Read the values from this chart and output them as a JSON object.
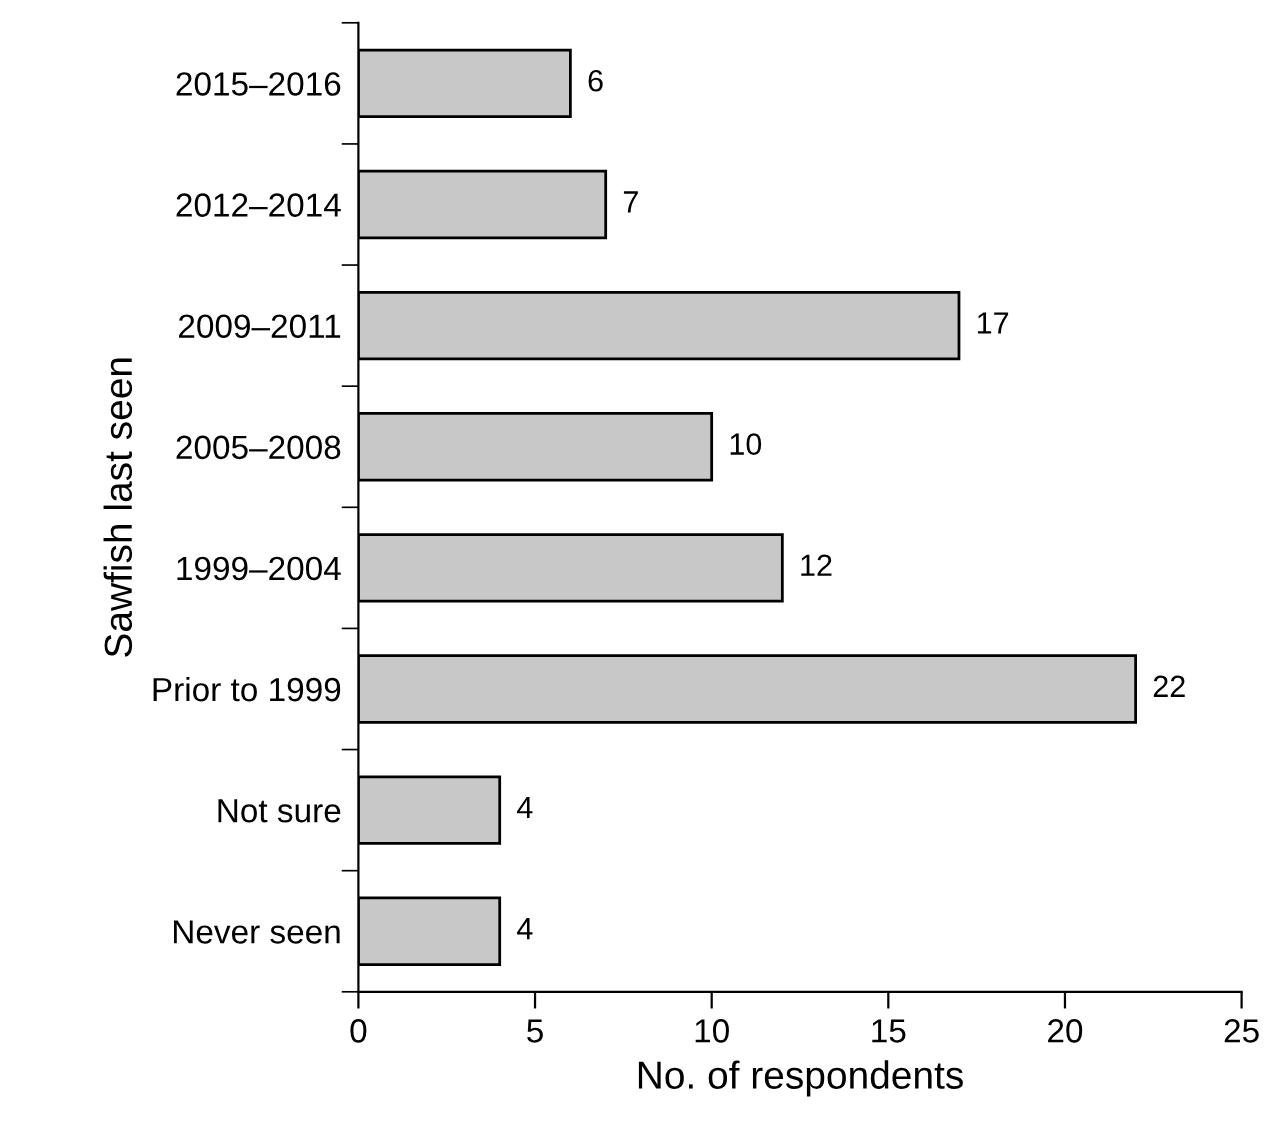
{
  "chart_data": {
    "type": "bar",
    "orientation": "horizontal",
    "xlabel": "No. of respondents",
    "ylabel": "Sawfish last seen",
    "categories": [
      "2015–2016",
      "2012–2014",
      "2009–2011",
      "2005–2008",
      "1999–2004",
      "Prior to 1999",
      "Not sure",
      "Never seen"
    ],
    "values": [
      6,
      7,
      17,
      10,
      12,
      22,
      4,
      4
    ],
    "color": "#c8c8c8",
    "xlim": [
      0,
      25
    ],
    "xticks": [
      0,
      5,
      10,
      15,
      20,
      25
    ],
    "data_labels": true,
    "grid": false,
    "legend": false
  }
}
